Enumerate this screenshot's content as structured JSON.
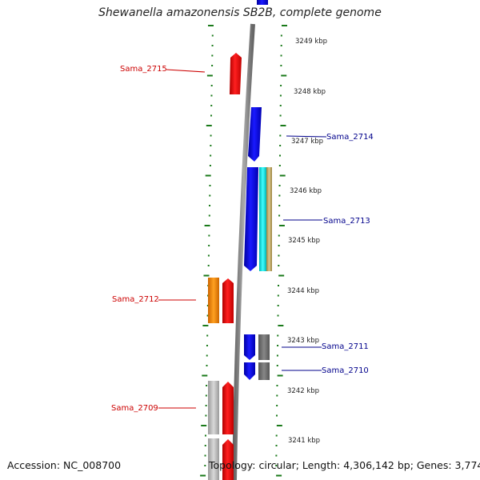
{
  "title": "Shewanella amazonensis SB2B, complete genome",
  "accession": "Accession: NC_008700",
  "summary": "Topology: circular; Length: 4,306,142 bp; Genes: 3,774",
  "colors": {
    "forward_cds": "#ff0000",
    "reverse_cds": "#0000ff",
    "gray_feature": "#777777",
    "light_gray_feature": "#bbbbbb",
    "orange_feature": "#ff8800",
    "cyan_feature": "#00e5e5",
    "tan_feature": "#c8b070",
    "tick_green": "#1a7a1a",
    "forward_label": "#cc0000",
    "reverse_label": "#00008b"
  },
  "scale_labels": [
    "3249 kbp",
    "3248 kbp",
    "3247 kbp",
    "3246 kbp",
    "3245 kbp",
    "3244 kbp",
    "3243 kbp",
    "3242 kbp",
    "3241 kbp"
  ],
  "gene_labels": [
    {
      "text": "Sama_2715",
      "strand": "forward"
    },
    {
      "text": "Sama_2714",
      "strand": "reverse"
    },
    {
      "text": "Sama_2713",
      "strand": "reverse"
    },
    {
      "text": "Sama_2712",
      "strand": "forward"
    },
    {
      "text": "Sama_2711",
      "strand": "reverse"
    },
    {
      "text": "Sama_2710",
      "strand": "reverse"
    },
    {
      "text": "Sama_2709",
      "strand": "forward"
    }
  ]
}
